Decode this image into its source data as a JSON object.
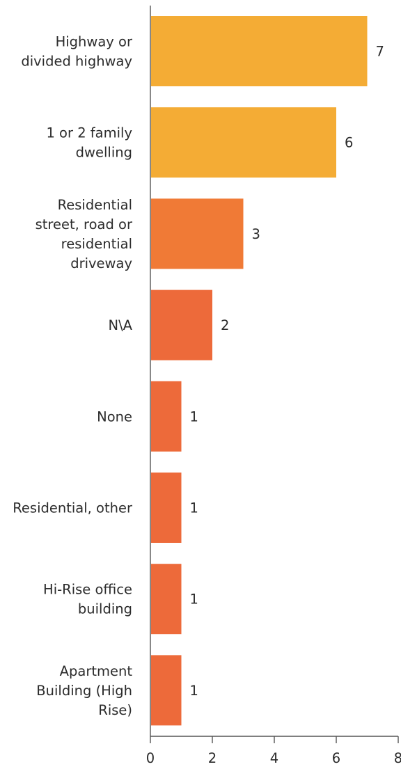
{
  "chart_data": {
    "type": "bar",
    "orientation": "horizontal",
    "categories": [
      [
        "Highway or",
        "divided highway"
      ],
      [
        "1 or 2 family",
        "dwelling"
      ],
      [
        "Residential",
        "street, road or",
        "residential",
        "driveway"
      ],
      [
        "N\\A"
      ],
      [
        "None"
      ],
      [
        "Residential, other"
      ],
      [
        "Hi-Rise office",
        "building"
      ],
      [
        "Apartment",
        "Building (High",
        "Rise)"
      ]
    ],
    "values": [
      7,
      6,
      3,
      2,
      1,
      1,
      1,
      1
    ],
    "value_labels": [
      "7",
      "6",
      "3",
      "2",
      "1",
      "1",
      "1",
      "1"
    ],
    "colors": [
      "#f4ac35",
      "#f4ac35",
      "#f07a36",
      "#ed6a3a",
      "#ed6a3a",
      "#ed6a3a",
      "#ed6a3a",
      "#ed6a3a"
    ],
    "x_ticks": [
      0,
      2,
      4,
      6,
      8
    ],
    "xlim": [
      0,
      8
    ],
    "title": "",
    "xlabel": "",
    "ylabel": "",
    "grid": false,
    "legend": "none"
  }
}
